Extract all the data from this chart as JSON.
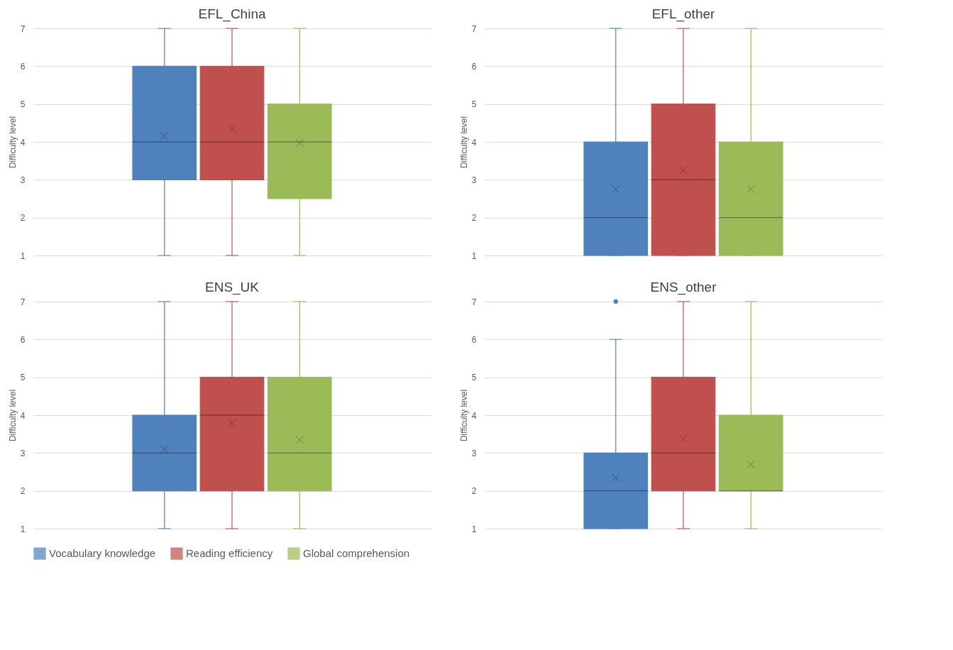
{
  "chart_data": [
    {
      "type": "box",
      "title": "EFL_China",
      "ylabel": "Difficulty level",
      "categories": [
        null
      ],
      "ylim": [
        1,
        7
      ],
      "yticks": [
        1,
        2,
        3,
        4,
        5,
        6,
        7
      ],
      "grid": "y",
      "tick_labels": "y",
      "legend": "bottom",
      "series": [
        {
          "name": "Vocabulary knowledge",
          "color": "#4f81bd",
          "boxes": [
            {
              "low": 1,
              "q1": 3,
              "median": 4,
              "q3": 6,
              "high": 7,
              "mean": 4.15
            }
          ]
        },
        {
          "name": "Reading efficiency",
          "color": "#c0504d",
          "boxes": [
            {
              "low": 1,
              "q1": 3,
              "median": 4,
              "q3": 6,
              "high": 7,
              "mean": 4.33
            }
          ]
        },
        {
          "name": "Global comprehension",
          "color": "#9bbb59",
          "boxes": [
            {
              "low": 1,
              "q1": 2.5,
              "median": 4,
              "q3": 5,
              "high": 7,
              "mean": 3.97
            }
          ]
        }
      ]
    },
    {
      "type": "box",
      "title": "EFL_other",
      "ylabel": "Difficulty level",
      "categories": [
        null
      ],
      "ylim": [
        1,
        7
      ],
      "yticks": [
        1,
        2,
        3,
        4,
        5,
        6,
        7
      ],
      "grid": "y",
      "tick_labels": "y",
      "legend": "bottom",
      "series": [
        {
          "name": "Vocabulary knowledge",
          "color": "#4f81bd",
          "boxes": [
            {
              "low": 1,
              "q1": 1,
              "median": 2,
              "q3": 4,
              "high": 7,
              "mean": 2.75
            }
          ]
        },
        {
          "name": "Reading efficiency",
          "color": "#c0504d",
          "boxes": [
            {
              "low": 1,
              "q1": 1,
              "median": 3,
              "q3": 5,
              "high": 7,
              "mean": 3.25
            }
          ]
        },
        {
          "name": "Global comprehension",
          "color": "#9bbb59",
          "boxes": [
            {
              "low": 1,
              "q1": 1,
              "median": 2,
              "q3": 4,
              "high": 7,
              "mean": 2.75
            }
          ]
        }
      ]
    },
    {
      "type": "box",
      "title": "ENS_UK",
      "ylabel": "Difficulty level",
      "categories": [
        null
      ],
      "ylim": [
        1,
        7
      ],
      "yticks": [
        1,
        2,
        3,
        4,
        5,
        6,
        7
      ],
      "grid": "y",
      "tick_labels": "y",
      "legend": "bottom",
      "series": [
        {
          "name": "Vocabulary knowledge",
          "color": "#4f81bd",
          "boxes": [
            {
              "low": 1,
              "q1": 2,
              "median": 3,
              "q3": 4,
              "high": 7,
              "mean": 3.1
            }
          ]
        },
        {
          "name": "Reading efficiency",
          "color": "#c0504d",
          "boxes": [
            {
              "low": 1,
              "q1": 2,
              "median": 4,
              "q3": 5,
              "high": 7,
              "mean": 3.8
            }
          ]
        },
        {
          "name": "Global comprehension",
          "color": "#9bbb59",
          "boxes": [
            {
              "low": 1,
              "q1": 2,
              "median": 3,
              "q3": 5,
              "high": 7,
              "mean": 3.35
            }
          ]
        }
      ]
    },
    {
      "type": "box",
      "title": "ENS_other",
      "ylabel": "Difficulty level",
      "categories": [
        null
      ],
      "ylim": [
        1,
        7
      ],
      "yticks": [
        1,
        2,
        3,
        4,
        5,
        6,
        7
      ],
      "grid": "y",
      "tick_labels": "y",
      "legend": "bottom",
      "series": [
        {
          "name": "Vocabulary knowledge",
          "color": "#4f81bd",
          "boxes": [
            {
              "low": 1,
              "q1": 1,
              "median": 2,
              "q3": 3,
              "high": 6,
              "mean": 2.35,
              "outliers": [
                7
              ]
            }
          ]
        },
        {
          "name": "Reading efficiency",
          "color": "#c0504d",
          "boxes": [
            {
              "low": 1,
              "q1": 2,
              "median": 3,
              "q3": 5,
              "high": 7,
              "mean": 3.38
            }
          ]
        },
        {
          "name": "Global comprehension",
          "color": "#9bbb59",
          "boxes": [
            {
              "low": 1,
              "q1": 2,
              "median": 2,
              "q3": 4,
              "high": 7,
              "mean": 2.7
            }
          ]
        }
      ]
    }
  ]
}
